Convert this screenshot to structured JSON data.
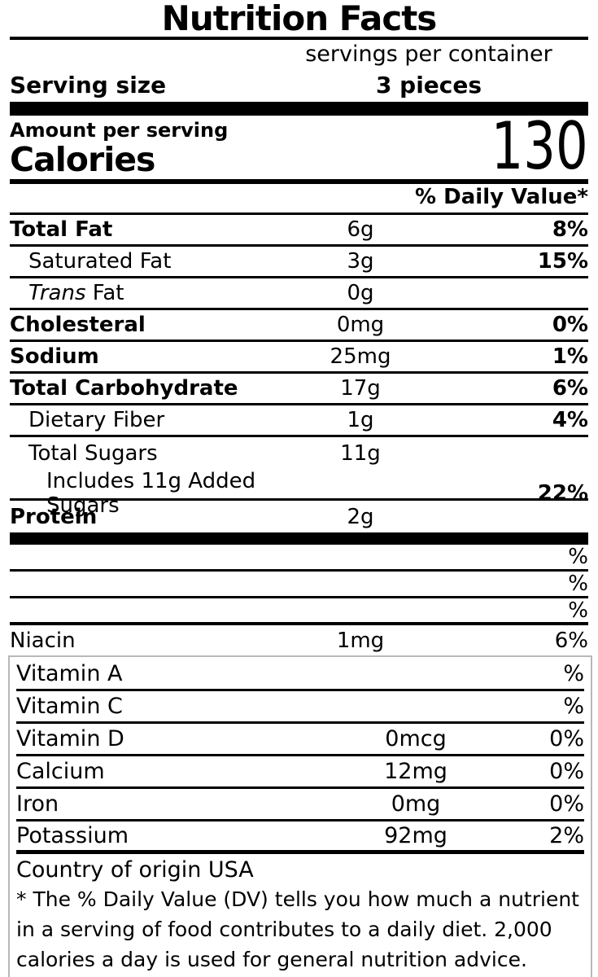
{
  "colors": {
    "text": "#000000",
    "background": "#ffffff",
    "box_border": "#b8b8b8"
  },
  "header": {
    "title": "Nutrition Facts",
    "servings_per_container": "servings per container",
    "serving_size_label": "Serving size",
    "serving_size_value": "3 pieces"
  },
  "calories": {
    "amount_per_serving_label": "Amount per serving",
    "label": "Calories",
    "value": "130"
  },
  "daily_value_header": "% Daily Value*",
  "nutrients": [
    {
      "name": "Total Fat",
      "amount": "6g",
      "dv": "8%"
    },
    {
      "name": "Saturated Fat",
      "amount": "3g",
      "dv": "15%"
    },
    {
      "name_italic": "Trans",
      "name_rest": " Fat",
      "amount": "0g",
      "dv": ""
    },
    {
      "name": "Cholesteral",
      "amount": "0mg",
      "dv": "0%"
    },
    {
      "name": "Sodium",
      "amount": "25mg",
      "dv": "1%"
    },
    {
      "name": "Total Carbohydrate",
      "amount": "17g",
      "dv": "6%"
    },
    {
      "name": "Dietary Fiber",
      "amount": "1g",
      "dv": "4%"
    },
    {
      "name": "Total Sugars",
      "amount": "11g",
      "dv": ""
    },
    {
      "name": "Includes 11g Added Sugars",
      "amount": "",
      "dv": "22%"
    },
    {
      "name": "Protein",
      "amount": "2g",
      "dv": ""
    }
  ],
  "blank_rows": [
    {
      "dv": "%"
    },
    {
      "dv": "%"
    },
    {
      "dv": "%"
    }
  ],
  "niacin": {
    "name": "Niacin",
    "amount": "1mg",
    "dv": "6%"
  },
  "micronutrients": [
    {
      "name": "Vitamin A",
      "amount": "",
      "dv": "%"
    },
    {
      "name": "Vitamin C",
      "amount": "",
      "dv": "%"
    },
    {
      "name": "Vitamin D",
      "amount": "0mcg",
      "dv": "0%"
    },
    {
      "name": "Calcium",
      "amount": "12mg",
      "dv": "0%"
    },
    {
      "name": "Iron",
      "amount": "0mg",
      "dv": "0%"
    },
    {
      "name": "Potassium",
      "amount": "92mg",
      "dv": "2%"
    }
  ],
  "footer": {
    "country_of_origin": "Country of origin USA",
    "daily_value_note": "* The % Daily Value (DV) tells you how much a nutrient in a serving of food contributes to a daily diet. 2,000 calories a day is used for general nutrition advice."
  }
}
